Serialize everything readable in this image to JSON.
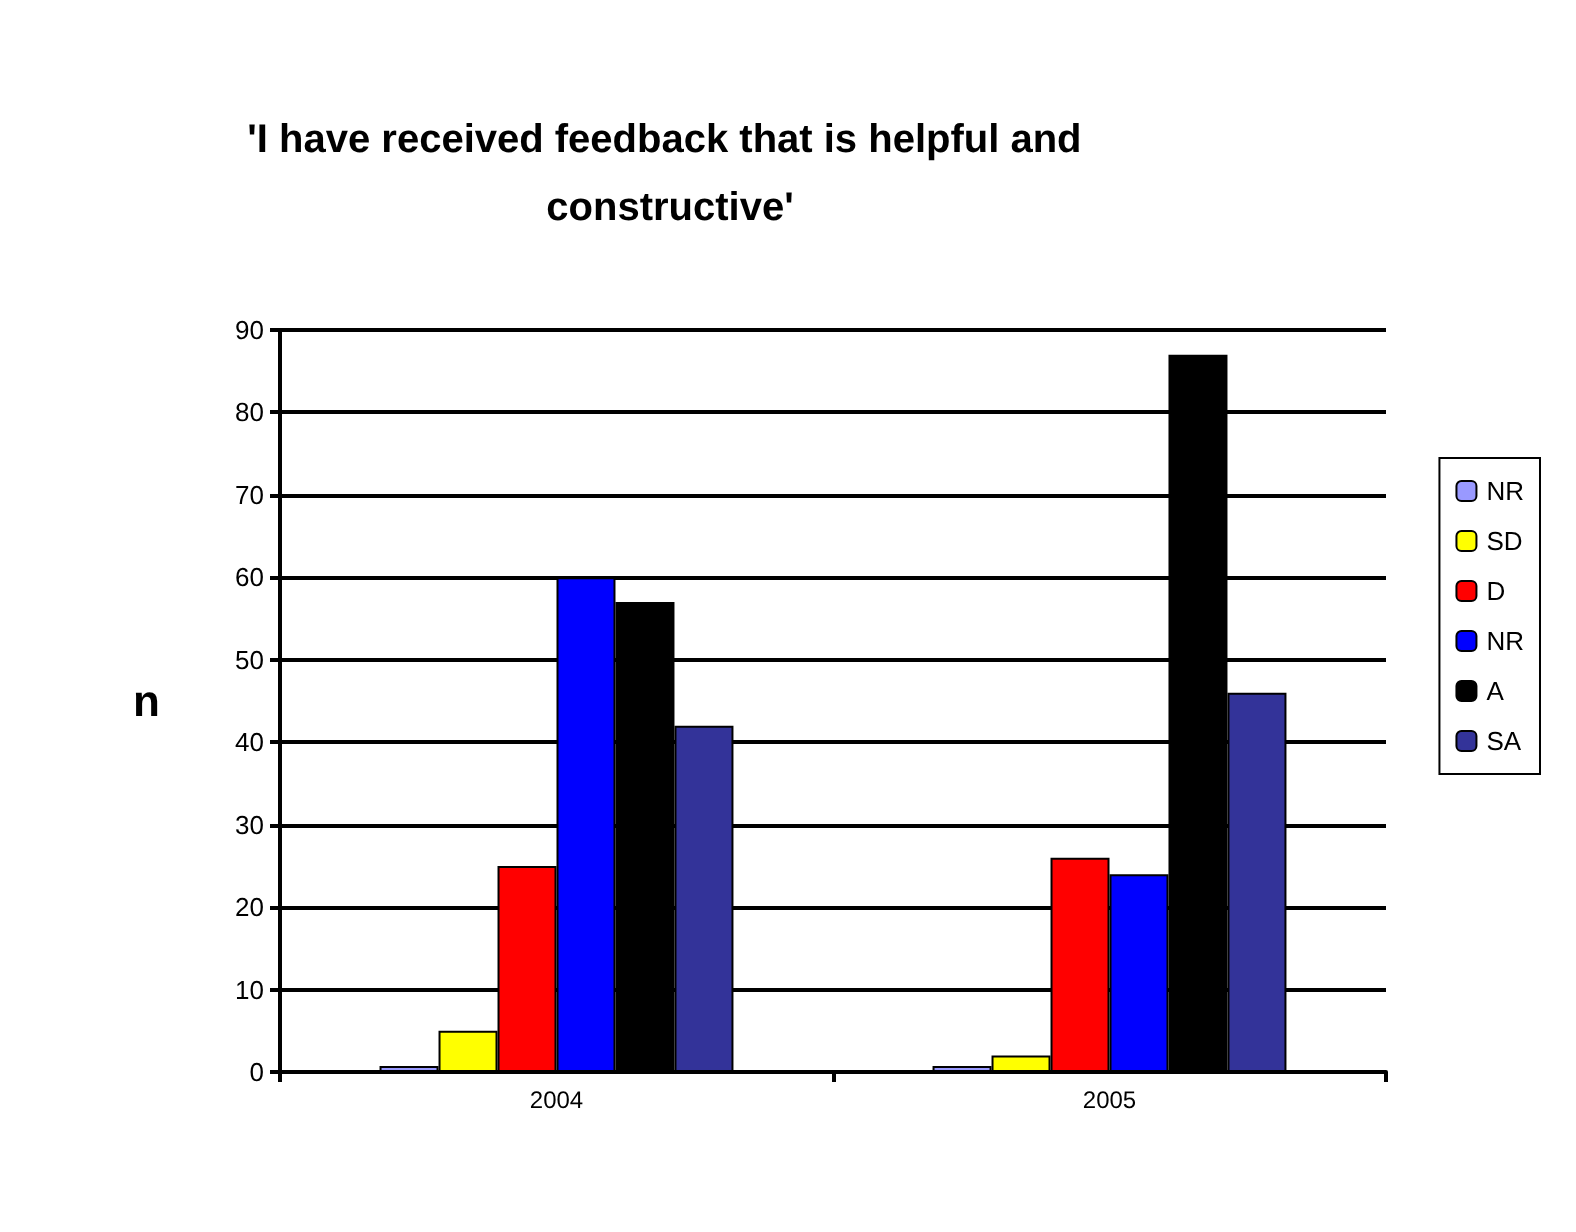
{
  "chart_data": {
    "type": "bar",
    "title": "'I have received feedback that is helpful and constructive'",
    "ylabel": "n",
    "categories": [
      "2004",
      "2005"
    ],
    "series": [
      {
        "name": "NR",
        "color": "#9999ff",
        "values": [
          0,
          0
        ]
      },
      {
        "name": "SD",
        "color": "#ffff00",
        "values": [
          5,
          2
        ]
      },
      {
        "name": "D",
        "color": "#ff0000",
        "values": [
          25,
          26
        ]
      },
      {
        "name": "NR",
        "color": "#0000ff",
        "values": [
          60,
          24
        ]
      },
      {
        "name": "A",
        "color": "#000000",
        "values": [
          57,
          87
        ]
      },
      {
        "name": "SA",
        "color": "#333399",
        "values": [
          42,
          46
        ]
      }
    ],
    "ylim": [
      0,
      90
    ],
    "yticks": [
      0,
      10,
      20,
      30,
      40,
      50,
      60,
      70,
      80,
      90
    ],
    "grid": "y",
    "legend": "right"
  }
}
